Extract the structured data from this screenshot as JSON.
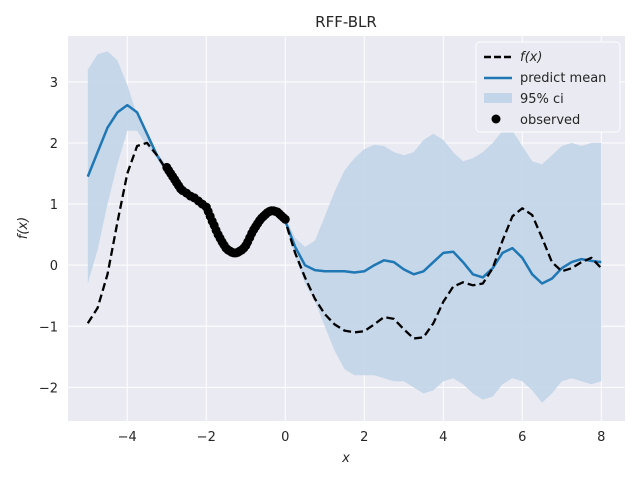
{
  "chart_data": {
    "type": "line",
    "title": "RFF-BLR",
    "xlabel": "x",
    "ylabel": "f(x)",
    "xlim": [
      -5.5,
      8.6
    ],
    "ylim": [
      -2.55,
      3.75
    ],
    "xticks": [
      -4,
      -2,
      0,
      2,
      4,
      6,
      8
    ],
    "xtick_labels": [
      "−4",
      "−2",
      "0",
      "2",
      "4",
      "6",
      "8"
    ],
    "yticks": [
      -2,
      -1,
      0,
      1,
      2,
      3
    ],
    "ytick_labels": [
      "−2",
      "−1",
      "0",
      "1",
      "2",
      "3"
    ],
    "grid": true,
    "legend_position": "top-right",
    "colors": {
      "background": "#eaeaf2",
      "grid": "#ffffff",
      "mean": "#1f77b4",
      "ci": "#c2d5e9",
      "truth": "#000000",
      "observed": "#000000"
    },
    "legend": [
      "f(x)",
      "predict mean",
      "95% ci",
      "observed"
    ],
    "series": [
      {
        "name": "f(x)",
        "style": "dashed",
        "x": [
          -5.0,
          -4.75,
          -4.5,
          -4.25,
          -4.0,
          -3.75,
          -3.5,
          -3.25,
          -3.0,
          -2.75,
          -2.5,
          -2.25,
          -2.0,
          -1.75,
          -1.5,
          -1.25,
          -1.0,
          -0.75,
          -0.5,
          -0.25,
          0.0,
          0.25,
          0.5,
          0.75,
          1.0,
          1.25,
          1.5,
          1.75,
          2.0,
          2.25,
          2.5,
          2.75,
          3.0,
          3.25,
          3.5,
          3.75,
          4.0,
          4.25,
          4.5,
          4.75,
          5.0,
          5.25,
          5.5,
          5.75,
          6.0,
          6.25,
          6.5,
          6.75,
          7.0,
          7.25,
          7.5,
          7.75,
          8.0
        ],
        "y": [
          -0.95,
          -0.7,
          -0.15,
          0.7,
          1.5,
          1.95,
          2.0,
          1.8,
          1.55,
          1.3,
          1.15,
          1.05,
          0.9,
          0.55,
          0.28,
          0.2,
          0.35,
          0.65,
          0.85,
          0.88,
          0.72,
          0.2,
          -0.2,
          -0.55,
          -0.8,
          -0.97,
          -1.07,
          -1.1,
          -1.08,
          -0.97,
          -0.85,
          -0.88,
          -1.05,
          -1.2,
          -1.18,
          -0.95,
          -0.6,
          -0.35,
          -0.28,
          -0.33,
          -0.3,
          -0.05,
          0.4,
          0.8,
          0.93,
          0.82,
          0.45,
          0.05,
          -0.1,
          -0.05,
          0.05,
          0.12,
          -0.05
        ]
      },
      {
        "name": "predict mean",
        "style": "solid",
        "x": [
          -5.0,
          -4.75,
          -4.5,
          -4.25,
          -4.0,
          -3.75,
          -3.5,
          -3.25,
          -3.0,
          -2.75,
          -2.5,
          -2.25,
          -2.0,
          -1.75,
          -1.5,
          -1.25,
          -1.0,
          -0.75,
          -0.5,
          -0.25,
          0.0,
          0.25,
          0.5,
          0.75,
          1.0,
          1.25,
          1.5,
          1.75,
          2.0,
          2.25,
          2.5,
          2.75,
          3.0,
          3.25,
          3.5,
          3.75,
          4.0,
          4.25,
          4.5,
          4.75,
          5.0,
          5.25,
          5.5,
          5.75,
          6.0,
          6.25,
          6.5,
          6.75,
          7.0,
          7.25,
          7.5,
          7.75,
          8.0
        ],
        "y": [
          1.45,
          1.85,
          2.25,
          2.5,
          2.62,
          2.5,
          2.15,
          1.8,
          1.55,
          1.3,
          1.15,
          1.05,
          0.9,
          0.55,
          0.28,
          0.2,
          0.35,
          0.65,
          0.85,
          0.88,
          0.72,
          0.3,
          0.0,
          -0.08,
          -0.1,
          -0.1,
          -0.1,
          -0.12,
          -0.1,
          0.0,
          0.08,
          0.05,
          -0.07,
          -0.15,
          -0.1,
          0.05,
          0.2,
          0.22,
          0.05,
          -0.15,
          -0.2,
          -0.05,
          0.2,
          0.28,
          0.12,
          -0.15,
          -0.3,
          -0.22,
          -0.05,
          0.05,
          0.1,
          0.07,
          0.05
        ]
      }
    ],
    "ci": {
      "name": "95% ci",
      "x": [
        -5.0,
        -4.75,
        -4.5,
        -4.25,
        -4.0,
        -3.75,
        -3.5,
        -3.25,
        -3.0,
        -2.75,
        -2.5,
        -2.25,
        -2.0,
        -1.75,
        -1.5,
        -1.25,
        -1.0,
        -0.75,
        -0.5,
        -0.25,
        0.0,
        0.25,
        0.5,
        0.75,
        1.0,
        1.25,
        1.5,
        1.75,
        2.0,
        2.25,
        2.5,
        2.75,
        3.0,
        3.25,
        3.5,
        3.75,
        4.0,
        4.25,
        4.5,
        4.75,
        5.0,
        5.25,
        5.5,
        5.75,
        6.0,
        6.25,
        6.5,
        6.75,
        7.0,
        7.25,
        7.5,
        7.75,
        8.0
      ],
      "upper": [
        3.2,
        3.45,
        3.5,
        3.35,
        2.95,
        2.45,
        2.1,
        1.85,
        1.62,
        1.35,
        1.2,
        1.08,
        0.95,
        0.6,
        0.32,
        0.24,
        0.39,
        0.68,
        0.88,
        0.92,
        0.78,
        0.45,
        0.3,
        0.4,
        0.8,
        1.2,
        1.55,
        1.75,
        1.9,
        1.97,
        1.95,
        1.85,
        1.8,
        1.85,
        2.05,
        2.15,
        2.05,
        1.85,
        1.7,
        1.75,
        1.85,
        2.0,
        2.2,
        2.2,
        1.95,
        1.7,
        1.65,
        1.8,
        1.95,
        2.0,
        1.95,
        2.0,
        2.0
      ],
      "lower": [
        -0.3,
        0.25,
        1.0,
        1.65,
        2.2,
        2.2,
        1.95,
        1.75,
        1.48,
        1.25,
        1.1,
        1.02,
        0.85,
        0.5,
        0.24,
        0.16,
        0.31,
        0.62,
        0.82,
        0.84,
        0.66,
        0.15,
        -0.3,
        -0.6,
        -1.0,
        -1.4,
        -1.7,
        -1.8,
        -1.8,
        -1.8,
        -1.85,
        -1.9,
        -1.9,
        -2.0,
        -2.1,
        -2.05,
        -1.9,
        -1.85,
        -1.95,
        -2.1,
        -2.2,
        -2.15,
        -1.95,
        -1.85,
        -1.9,
        -2.05,
        -2.25,
        -2.1,
        -1.9,
        -1.85,
        -1.9,
        -1.95,
        -1.9
      ]
    },
    "observed": {
      "name": "observed",
      "x": [
        -3.0,
        -2.95,
        -2.9,
        -2.85,
        -2.8,
        -2.75,
        -2.7,
        -2.65,
        -2.6,
        -2.5,
        -2.4,
        -2.3,
        -2.2,
        -2.1,
        -2.0,
        -1.95,
        -1.9,
        -1.85,
        -1.8,
        -1.75,
        -1.7,
        -1.65,
        -1.6,
        -1.55,
        -1.5,
        -1.45,
        -1.4,
        -1.35,
        -1.3,
        -1.25,
        -1.2,
        -1.15,
        -1.1,
        -1.05,
        -1.0,
        -0.95,
        -0.9,
        -0.85,
        -0.8,
        -0.75,
        -0.7,
        -0.65,
        -0.6,
        -0.55,
        -0.5,
        -0.45,
        -0.4,
        -0.35,
        -0.3,
        -0.25,
        -0.2,
        -0.15,
        -0.1,
        -0.05,
        0.0
      ],
      "y": [
        1.6,
        1.55,
        1.5,
        1.45,
        1.4,
        1.35,
        1.3,
        1.25,
        1.22,
        1.18,
        1.13,
        1.1,
        1.05,
        1.0,
        0.95,
        0.88,
        0.8,
        0.72,
        0.65,
        0.57,
        0.5,
        0.44,
        0.38,
        0.33,
        0.28,
        0.25,
        0.23,
        0.21,
        0.2,
        0.2,
        0.21,
        0.23,
        0.25,
        0.28,
        0.32,
        0.38,
        0.45,
        0.52,
        0.58,
        0.63,
        0.68,
        0.73,
        0.77,
        0.8,
        0.83,
        0.86,
        0.88,
        0.89,
        0.89,
        0.88,
        0.87,
        0.84,
        0.81,
        0.78,
        0.75
      ]
    }
  }
}
